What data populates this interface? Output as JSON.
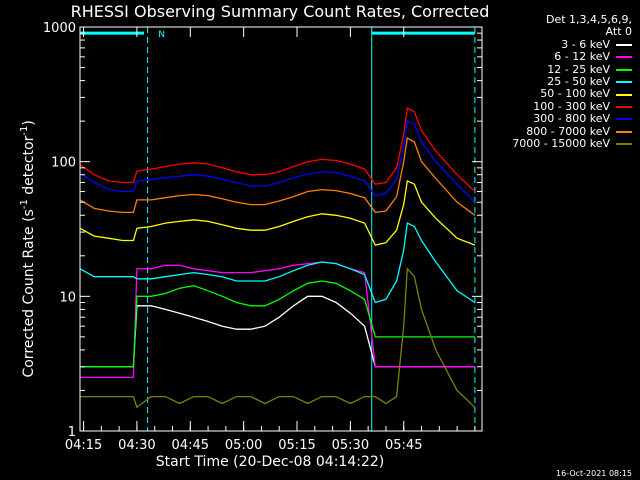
{
  "title": "RHESSI Observing Summary Count Rates, Corrected",
  "legend_header": [
    "Det 1,3,4,5,6,9,",
    "Att 0"
  ],
  "footer_stamp": "16-Oct-2021 08:15",
  "colors": {
    "background": "#000000",
    "axes": "#ffffff",
    "cyan_marker": "#00ffff"
  },
  "chart_data": {
    "type": "line",
    "xlabel": "Start Time (20-Dec-08 04:14:22)",
    "ylabel": "Corrected Count Rate (s",
    "ylabel_parts": {
      "main": "Corrected Count Rate (s",
      "sup1": "-1",
      "mid": " detector",
      "sup2": "-1",
      "end": ")"
    },
    "x_range_min": [
      254,
      367
    ],
    "y_range": [
      1,
      1000
    ],
    "y_scale": "log",
    "x_ticks": [
      {
        "t": 255,
        "label": "04:15"
      },
      {
        "t": 270,
        "label": "04:30"
      },
      {
        "t": 285,
        "label": "04:45"
      },
      {
        "t": 300,
        "label": "05:00"
      },
      {
        "t": 315,
        "label": "05:15"
      },
      {
        "t": 330,
        "label": "05:30"
      },
      {
        "t": 345,
        "label": "05:45"
      }
    ],
    "y_ticks": [
      {
        "v": 1,
        "label": "1"
      },
      {
        "v": 10,
        "label": "10"
      },
      {
        "v": 100,
        "label": "100"
      },
      {
        "v": 1000,
        "label": "1000"
      }
    ],
    "annotations": [
      {
        "text": "N",
        "x": 276,
        "y": 900
      },
      {
        "type": "bar",
        "x1": 254,
        "x2": 272,
        "y": 900,
        "color": "#00ffff"
      },
      {
        "type": "bar",
        "x1": 336,
        "x2": 365,
        "y": 900,
        "color": "#00ffff"
      },
      {
        "type": "dashed_line",
        "x": 273,
        "color": "#00ffff"
      },
      {
        "type": "solid_line",
        "x": 336,
        "color": "#00ffff"
      },
      {
        "type": "dashed_line",
        "x": 365,
        "color": "#00ffff"
      }
    ],
    "series": [
      {
        "name": "3 - 6 keV",
        "color": "#ffffff",
        "x": [
          254,
          258,
          262,
          266,
          269,
          270,
          274,
          278,
          282,
          286,
          290,
          294,
          298,
          302,
          306,
          310,
          314,
          318,
          322,
          326,
          330,
          334,
          337,
          340,
          343,
          345,
          346,
          348,
          350,
          354,
          360,
          365
        ],
        "y": [
          3,
          3,
          3,
          3,
          3,
          8.5,
          8.5,
          8,
          7.5,
          7,
          6.5,
          6,
          5.7,
          5.7,
          6,
          7,
          8.5,
          10,
          10,
          9,
          7.5,
          6,
          3,
          3,
          3,
          3,
          3,
          3,
          3,
          3,
          3,
          3
        ]
      },
      {
        "name": "6 - 12 keV",
        "color": "#ff00ff",
        "x": [
          254,
          258,
          262,
          266,
          269,
          270,
          274,
          278,
          282,
          286,
          290,
          294,
          298,
          302,
          306,
          310,
          314,
          318,
          322,
          326,
          330,
          334,
          337,
          340,
          343,
          345,
          346,
          348,
          350,
          354,
          360,
          365
        ],
        "y": [
          2.5,
          2.5,
          2.5,
          2.5,
          2.5,
          16,
          16,
          17,
          17,
          16,
          15.5,
          15,
          15,
          15,
          15.5,
          16,
          17,
          17.5,
          18,
          17.5,
          16,
          15,
          3,
          3,
          3,
          3,
          3,
          3,
          3,
          3,
          3,
          3
        ]
      },
      {
        "name": "12 - 25 keV",
        "color": "#00ff00",
        "x": [
          254,
          258,
          262,
          266,
          269,
          270,
          274,
          278,
          282,
          286,
          290,
          294,
          298,
          302,
          306,
          310,
          314,
          318,
          322,
          326,
          330,
          334,
          337,
          340,
          343,
          345,
          346,
          348,
          350,
          354,
          360,
          365
        ],
        "y": [
          3,
          3,
          3,
          3,
          3,
          10,
          10,
          10.5,
          11.5,
          12,
          11,
          10,
          9,
          8.5,
          8.5,
          9.5,
          11,
          12.5,
          13,
          12.5,
          11,
          9.5,
          5,
          5,
          5,
          5,
          5,
          5,
          5,
          5,
          5,
          5
        ]
      },
      {
        "name": "25 - 50 keV",
        "color": "#00ffff",
        "x": [
          254,
          258,
          262,
          266,
          269,
          270,
          274,
          278,
          282,
          286,
          290,
          294,
          298,
          302,
          306,
          310,
          314,
          318,
          322,
          326,
          330,
          334,
          337,
          340,
          343,
          345,
          346,
          348,
          350,
          354,
          360,
          365
        ],
        "y": [
          16,
          14,
          14,
          14,
          14,
          13.5,
          13.5,
          14,
          14.5,
          15,
          14.5,
          14,
          13,
          13,
          13,
          14,
          15.5,
          17,
          18,
          17.5,
          16,
          14.5,
          9,
          9.5,
          13,
          22,
          35,
          33,
          26,
          18,
          11,
          9
        ]
      },
      {
        "name": "50 - 100 keV",
        "color": "#ffff00",
        "x": [
          254,
          258,
          262,
          266,
          269,
          270,
          274,
          278,
          282,
          286,
          290,
          294,
          298,
          302,
          306,
          310,
          314,
          318,
          322,
          326,
          330,
          334,
          337,
          340,
          343,
          345,
          346,
          348,
          350,
          354,
          360,
          365
        ],
        "y": [
          32,
          28,
          27,
          26,
          26,
          32,
          33,
          35,
          36,
          37,
          36,
          34,
          32,
          31,
          31,
          33,
          36,
          39,
          41,
          40,
          38,
          35,
          24,
          25,
          31,
          48,
          72,
          68,
          50,
          38,
          27,
          24
        ]
      },
      {
        "name": "100 - 300 keV",
        "color": "#ff0000",
        "x": [
          254,
          258,
          262,
          266,
          269,
          270,
          274,
          278,
          282,
          286,
          290,
          294,
          298,
          302,
          306,
          310,
          314,
          318,
          322,
          326,
          330,
          334,
          337,
          340,
          343,
          345,
          346,
          348,
          350,
          354,
          360,
          365
        ],
        "y": [
          95,
          80,
          72,
          70,
          70,
          85,
          88,
          92,
          96,
          98,
          96,
          90,
          84,
          80,
          80,
          84,
          92,
          100,
          104,
          102,
          96,
          88,
          68,
          70,
          90,
          160,
          250,
          235,
          170,
          120,
          80,
          60
        ]
      },
      {
        "name": "300 - 800 keV",
        "color": "#0000ff",
        "x": [
          254,
          258,
          262,
          266,
          269,
          270,
          274,
          278,
          282,
          286,
          290,
          294,
          298,
          302,
          306,
          310,
          314,
          318,
          322,
          326,
          330,
          334,
          337,
          340,
          343,
          345,
          346,
          348,
          350,
          354,
          360,
          365
        ],
        "y": [
          82,
          70,
          62,
          60,
          60,
          72,
          74,
          76,
          78,
          80,
          78,
          74,
          70,
          66,
          66,
          70,
          76,
          81,
          84,
          83,
          78,
          72,
          56,
          58,
          74,
          130,
          200,
          190,
          140,
          100,
          68,
          50
        ]
      },
      {
        "name": "800 - 7000 keV",
        "color": "#ff8000",
        "x": [
          254,
          258,
          262,
          266,
          269,
          270,
          274,
          278,
          282,
          286,
          290,
          294,
          298,
          302,
          306,
          310,
          314,
          318,
          322,
          326,
          330,
          334,
          337,
          340,
          343,
          345,
          346,
          348,
          350,
          354,
          360,
          365
        ],
        "y": [
          52,
          45,
          43,
          42,
          42,
          52,
          52,
          54,
          56,
          57,
          56,
          53,
          50,
          48,
          48,
          51,
          55,
          60,
          62,
          61,
          58,
          54,
          42,
          43,
          55,
          100,
          150,
          140,
          100,
          75,
          50,
          40
        ]
      },
      {
        "name": "7000 - 15000 keV",
        "color": "#808000",
        "x": [
          254,
          258,
          262,
          266,
          269,
          270,
          274,
          278,
          282,
          286,
          290,
          294,
          298,
          302,
          306,
          310,
          314,
          318,
          322,
          326,
          330,
          334,
          337,
          340,
          343,
          345,
          346,
          348,
          350,
          354,
          360,
          365
        ],
        "y": [
          1.8,
          1.8,
          1.8,
          1.8,
          1.8,
          1.5,
          1.8,
          1.8,
          1.6,
          1.8,
          1.8,
          1.6,
          1.8,
          1.8,
          1.6,
          1.8,
          1.8,
          1.6,
          1.8,
          1.8,
          1.6,
          1.8,
          1.8,
          1.6,
          1.8,
          6,
          16,
          14,
          8,
          4,
          2,
          1.5
        ]
      }
    ]
  }
}
